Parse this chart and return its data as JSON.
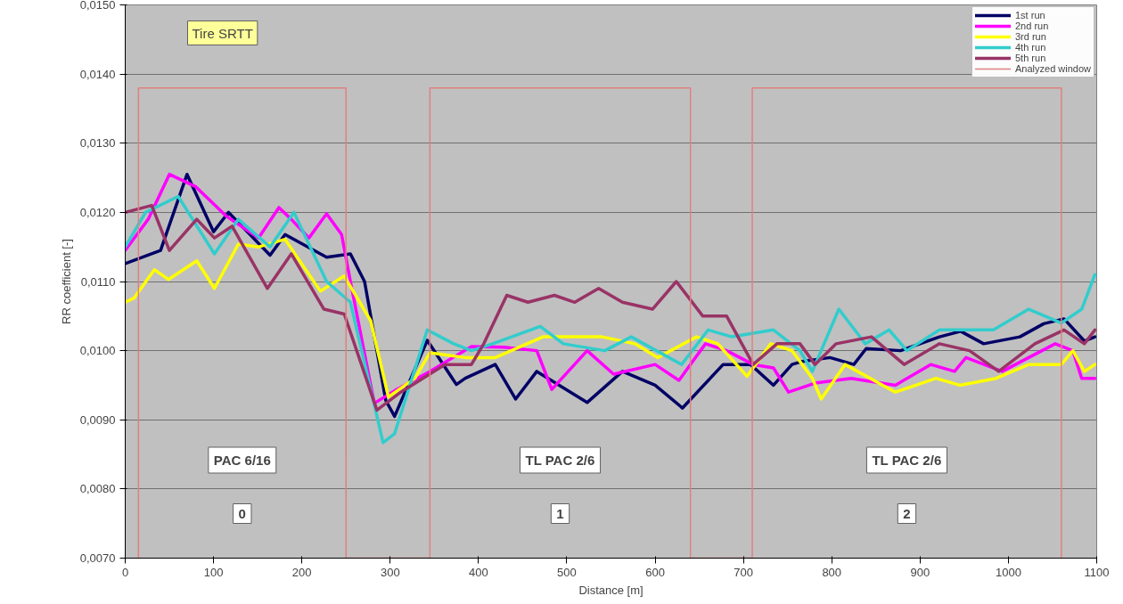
{
  "chart_data": {
    "type": "line",
    "xlabel": "Distance [m]",
    "ylabel": "RR coefficient [-]",
    "xlim": [
      0,
      1100
    ],
    "ylim": [
      0.007,
      0.015
    ],
    "xticks": [
      0,
      100,
      200,
      300,
      400,
      500,
      600,
      700,
      800,
      900,
      1000,
      1100
    ],
    "yticks": [
      {
        "value": 0.007,
        "label": "0,0070"
      },
      {
        "value": 0.008,
        "label": "0,0080"
      },
      {
        "value": 0.009,
        "label": "0,0090"
      },
      {
        "value": 0.01,
        "label": "0,0100"
      },
      {
        "value": 0.011,
        "label": "0,0110"
      },
      {
        "value": 0.012,
        "label": "0,0120"
      },
      {
        "value": 0.013,
        "label": "0,0130"
      },
      {
        "value": 0.014,
        "label": "0,0140"
      },
      {
        "value": 0.015,
        "label": "0,0150"
      }
    ],
    "grid": "y",
    "legend": "top right",
    "line_style": "solid",
    "marker": "none",
    "series": [
      {
        "name": "1st run",
        "color": "#000066",
        "x": [
          0,
          40,
          70,
          100,
          117,
          164,
          181,
          228,
          255,
          271,
          295,
          305,
          342,
          375,
          385,
          419,
          442,
          466,
          523,
          563,
          600,
          631,
          677,
          708,
          734,
          755,
          765,
          798,
          825,
          839,
          878,
          922,
          946,
          972,
          1013,
          1040,
          1063,
          1086,
          1098
        ],
        "values": [
          0.01126,
          0.01145,
          0.01255,
          0.01172,
          0.012,
          0.01138,
          0.01168,
          0.01135,
          0.0114,
          0.011,
          0.00928,
          0.00905,
          0.01015,
          0.00951,
          0.0096,
          0.0098,
          0.0093,
          0.0097,
          0.00925,
          0.0097,
          0.0095,
          0.00917,
          0.0098,
          0.0098,
          0.0095,
          0.0098,
          0.00984,
          0.0099,
          0.0098,
          0.01003,
          0.01,
          0.0102,
          0.01028,
          0.0101,
          0.0102,
          0.01039,
          0.01046,
          0.01014,
          0.0102
        ]
      },
      {
        "name": "2nd run",
        "color": "#ff00ff",
        "x": [
          0,
          26,
          50,
          80,
          114,
          151,
          174,
          188,
          208,
          228,
          245,
          255,
          282,
          305,
          345,
          392,
          429,
          466,
          483,
          523,
          553,
          600,
          627,
          657,
          681,
          711,
          734,
          751,
          781,
          822,
          872,
          912,
          939,
          952,
          993,
          1053,
          1073,
          1083,
          1098
        ],
        "values": [
          0.01145,
          0.0119,
          0.01255,
          0.01237,
          0.01195,
          0.01163,
          0.01207,
          0.0119,
          0.01163,
          0.01198,
          0.01168,
          0.011,
          0.00924,
          0.00942,
          0.0097,
          0.01006,
          0.01005,
          0.01,
          0.00944,
          0.01,
          0.00966,
          0.0098,
          0.00957,
          0.0101,
          0.01,
          0.0098,
          0.00975,
          0.0094,
          0.00953,
          0.0096,
          0.0095,
          0.0098,
          0.0097,
          0.0099,
          0.0097,
          0.0101,
          0.01,
          0.0096,
          0.0096
        ]
      },
      {
        "name": "3rd run",
        "color": "#ffff00",
        "x": [
          0,
          10,
          33,
          49,
          81,
          101,
          128,
          151,
          181,
          221,
          248,
          278,
          298,
          328,
          345,
          385,
          419,
          473,
          540,
          577,
          603,
          647,
          671,
          704,
          731,
          755,
          778,
          788,
          815,
          872,
          918,
          945,
          986,
          1023,
          1060,
          1073,
          1086,
          1098
        ],
        "values": [
          0.0107,
          0.01076,
          0.01117,
          0.01103,
          0.0113,
          0.0109,
          0.01154,
          0.0115,
          0.01161,
          0.01086,
          0.01108,
          0.01043,
          0.00933,
          0.0096,
          0.00997,
          0.0099,
          0.0099,
          0.0102,
          0.0102,
          0.0101,
          0.0099,
          0.0102,
          0.0101,
          0.00963,
          0.0101,
          0.01,
          0.0096,
          0.0093,
          0.0098,
          0.0094,
          0.0096,
          0.0095,
          0.0096,
          0.0098,
          0.0098,
          0.01,
          0.0097,
          0.0098
        ]
      },
      {
        "name": "4th run",
        "color": "#33cccc",
        "x": [
          0,
          23,
          60,
          101,
          128,
          164,
          191,
          228,
          255,
          292,
          305,
          342,
          372,
          392,
          416,
          470,
          496,
          543,
          573,
          630,
          660,
          687,
          734,
          764,
          778,
          808,
          838,
          865,
          885,
          922,
          983,
          1023,
          1060,
          1083,
          1098
        ],
        "values": [
          0.0115,
          0.012,
          0.01223,
          0.0114,
          0.0119,
          0.0115,
          0.012,
          0.011,
          0.0107,
          0.00867,
          0.0088,
          0.0103,
          0.0101,
          0.01,
          0.0101,
          0.01035,
          0.0101,
          0.01,
          0.0102,
          0.0098,
          0.0103,
          0.0102,
          0.0103,
          0.01,
          0.0097,
          0.0106,
          0.0101,
          0.0103,
          0.01,
          0.0103,
          0.0103,
          0.0106,
          0.0104,
          0.0106,
          0.0111
        ]
      },
      {
        "name": "5th run",
        "color": "#993366",
        "x": [
          0,
          30,
          50,
          81,
          101,
          121,
          161,
          188,
          225,
          248,
          285,
          312,
          362,
          392,
          406,
          432,
          456,
          486,
          509,
          536,
          563,
          597,
          624,
          654,
          681,
          711,
          738,
          764,
          781,
          805,
          845,
          882,
          922,
          956,
          989,
          1030,
          1063,
          1086,
          1098
        ],
        "values": [
          0.012,
          0.0121,
          0.01145,
          0.0119,
          0.01163,
          0.0118,
          0.0109,
          0.0114,
          0.0106,
          0.01053,
          0.00914,
          0.0094,
          0.0098,
          0.0098,
          0.0101,
          0.0108,
          0.0107,
          0.0108,
          0.0107,
          0.0109,
          0.0107,
          0.0106,
          0.011,
          0.0105,
          0.0105,
          0.0098,
          0.0101,
          0.0101,
          0.0098,
          0.0101,
          0.0102,
          0.0098,
          0.0101,
          0.01,
          0.0097,
          0.0101,
          0.0103,
          0.0101,
          0.0103
        ]
      },
      {
        "name": "Analyzed window",
        "color": "#e08080",
        "x": [
          15,
          15,
          250,
          250,
          345,
          345,
          640,
          640,
          710,
          710,
          1060,
          1060
        ],
        "values": [
          0.007,
          0.0138,
          0.0138,
          0.007,
          0.007,
          0.0138,
          0.0138,
          0.007,
          0.007,
          0.0138,
          0.0138,
          0.007
        ]
      }
    ],
    "annotations": [
      "Tire SRTT",
      "PAC 6/16",
      "0",
      "TL PAC 2/6",
      "1",
      "TL PAC 2/6",
      "2"
    ]
  }
}
